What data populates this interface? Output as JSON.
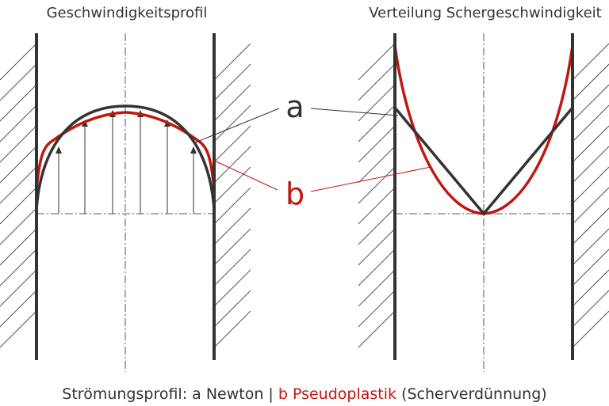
{
  "titles": {
    "left": "Geschwindigkeitsprofil",
    "right": "Verteilung Schergeschwindigkeit"
  },
  "curve_labels": {
    "a": "a",
    "b": "b"
  },
  "caption": {
    "part1": "Strömungsprofil: a Newton | ",
    "part2": "b Pseudoplastik",
    "part3": " (Scherverdünnung)"
  },
  "colors": {
    "newton": "#333333",
    "pseudoplastic": "#c0170f",
    "caption_highlight": "#c0170f"
  }
}
